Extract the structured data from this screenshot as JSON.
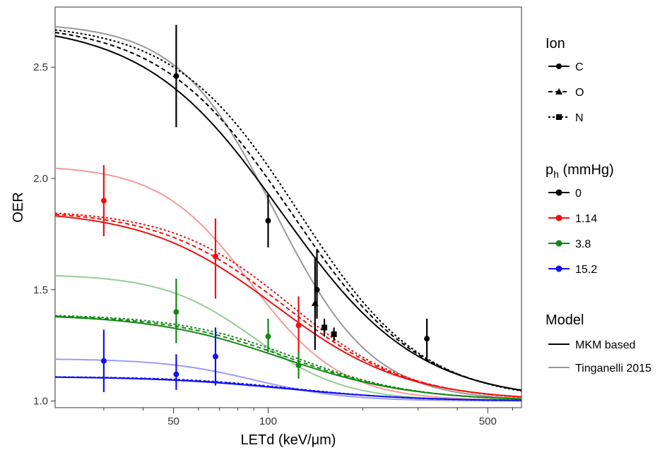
{
  "chart_data": {
    "type": "line",
    "xlabel": "LETd (keV/μm)",
    "ylabel": "OER",
    "x_scale": "log",
    "xlim": [
      21,
      640
    ],
    "ylim": [
      0.97,
      2.77
    ],
    "x_ticks": [
      50,
      100,
      500
    ],
    "x_tick_labels": [
      "50",
      "100",
      "500"
    ],
    "y_ticks": [
      1.0,
      1.5,
      2.0,
      2.5
    ],
    "y_tick_labels": [
      "1.0",
      "1.5",
      "2.0",
      "2.5"
    ],
    "grid": false,
    "legend_placement": "right",
    "legend": {
      "ion": {
        "title": "Ion",
        "entries": [
          {
            "label": "C",
            "marker": "circle",
            "dash": "solid"
          },
          {
            "label": "O",
            "marker": "triangle",
            "dash": "dashed"
          },
          {
            "label": "N",
            "marker": "square",
            "dash": "dotted"
          }
        ]
      },
      "ph": {
        "title_main": "p",
        "title_sub": "h",
        "title_rest": " (mmHg)",
        "entries": [
          {
            "label": "0",
            "color": "#000000"
          },
          {
            "label": "1.14",
            "color": "#ee1111"
          },
          {
            "label": "3.8",
            "color": "#118811"
          },
          {
            "label": "15.2",
            "color": "#1111ee"
          }
        ]
      },
      "model": {
        "title": "Model",
        "entries": [
          {
            "label": "MKM based",
            "color": "#000000"
          },
          {
            "label": "Tinganelli 2015",
            "color": "#999999"
          }
        ]
      }
    },
    "series": [
      {
        "ph": "0",
        "color": "#000000",
        "tinganelli": {
          "a": 2.7,
          "l": 105,
          "n": 2.8
        },
        "mkm": {
          "C": {
            "a": 2.7,
            "l": 110,
            "n": 2.0
          },
          "O": {
            "a": 2.7,
            "l": 118,
            "n": 2.1
          },
          "N": {
            "a": 2.7,
            "l": 125,
            "n": 2.2
          }
        },
        "points": [
          {
            "x": 51,
            "y": 2.46,
            "lo": 2.23,
            "hi": 2.69,
            "ion": "C"
          },
          {
            "x": 100,
            "y": 1.81,
            "lo": 1.69,
            "hi": 1.93,
            "ion": "C"
          },
          {
            "x": 143,
            "y": 1.5,
            "lo": 1.37,
            "hi": 1.68,
            "ion": "C"
          },
          {
            "x": 141,
            "y": 1.44,
            "lo": 1.23,
            "hi": 1.64,
            "ion": "O"
          },
          {
            "x": 151,
            "y": 1.33,
            "lo": 1.29,
            "hi": 1.37,
            "ion": "N"
          },
          {
            "x": 162,
            "y": 1.3,
            "lo": 1.27,
            "hi": 1.33,
            "ion": "N"
          },
          {
            "x": 320,
            "y": 1.28,
            "lo": 1.19,
            "hi": 1.37,
            "ion": "C"
          }
        ]
      },
      {
        "ph": "1.14",
        "color": "#ee1111",
        "tinganelli": {
          "a": 2.06,
          "l": 88,
          "n": 3.0
        },
        "mkm": {
          "C": {
            "a": 1.86,
            "l": 105,
            "n": 2.1
          },
          "O": {
            "a": 1.86,
            "l": 112,
            "n": 2.2
          },
          "N": {
            "a": 1.86,
            "l": 118,
            "n": 2.3
          }
        },
        "points": [
          {
            "x": 30,
            "y": 1.9,
            "lo": 1.74,
            "hi": 2.06,
            "ion": "C"
          },
          {
            "x": 68,
            "y": 1.65,
            "lo": 1.46,
            "hi": 1.82,
            "ion": "C"
          },
          {
            "x": 125,
            "y": 1.34,
            "lo": 1.21,
            "hi": 1.47,
            "ion": "C"
          }
        ]
      },
      {
        "ph": "3.8",
        "color": "#118811",
        "tinganelli": {
          "a": 1.57,
          "l": 90,
          "n": 3.0
        },
        "mkm": {
          "C": {
            "a": 1.39,
            "l": 110,
            "n": 2.1
          },
          "O": {
            "a": 1.39,
            "l": 116,
            "n": 2.2
          },
          "N": {
            "a": 1.39,
            "l": 122,
            "n": 2.3
          }
        },
        "points": [
          {
            "x": 51,
            "y": 1.4,
            "lo": 1.26,
            "hi": 1.55,
            "ion": "C"
          },
          {
            "x": 100,
            "y": 1.29,
            "lo": 1.22,
            "hi": 1.37,
            "ion": "C"
          },
          {
            "x": 125,
            "y": 1.16,
            "lo": 1.1,
            "hi": 1.22,
            "ion": "C"
          }
        ]
      },
      {
        "ph": "15.2",
        "color": "#1111ee",
        "tinganelli": {
          "a": 1.19,
          "l": 90,
          "n": 3.0
        },
        "mkm": {
          "C": {
            "a": 1.11,
            "l": 115,
            "n": 2.1
          },
          "O": {
            "a": 1.11,
            "l": 118,
            "n": 2.2
          },
          "N": {
            "a": 1.11,
            "l": 122,
            "n": 2.3
          }
        },
        "points": [
          {
            "x": 30,
            "y": 1.18,
            "lo": 1.04,
            "hi": 1.32,
            "ion": "C"
          },
          {
            "x": 51,
            "y": 1.12,
            "lo": 1.05,
            "hi": 1.21,
            "ion": "C"
          },
          {
            "x": 68,
            "y": 1.2,
            "lo": 1.07,
            "hi": 1.33,
            "ion": "C"
          }
        ]
      }
    ]
  }
}
